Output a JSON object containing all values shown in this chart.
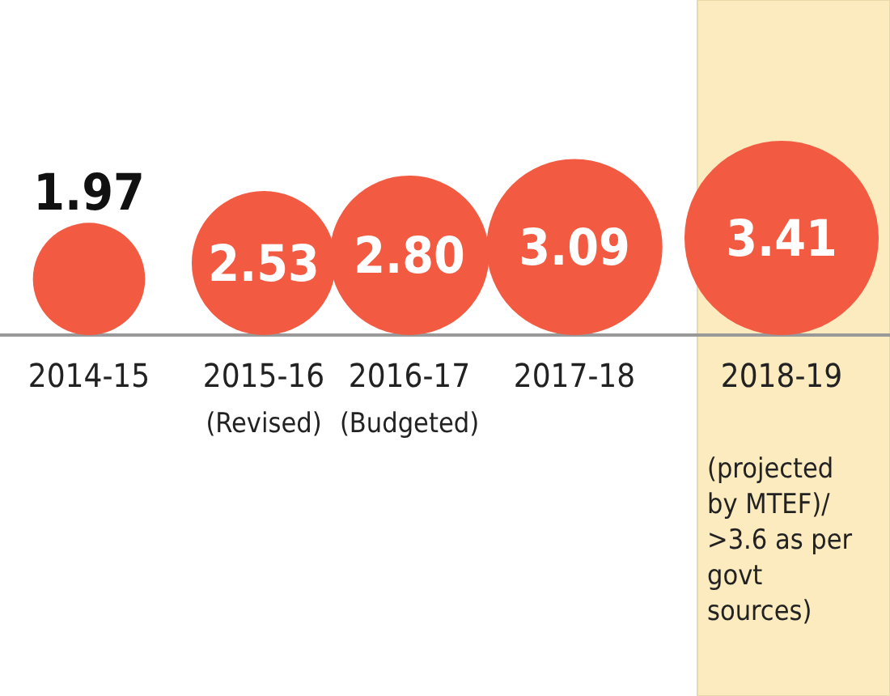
{
  "chart_data": {
    "type": "other",
    "categories": [
      "2014-15",
      "2015-16",
      "2016-17",
      "2017-18",
      "2018-19"
    ],
    "values": [
      1.97,
      2.53,
      2.8,
      3.09,
      3.41
    ],
    "color": "#f25a42",
    "value_labels": [
      "1.97",
      "2.53",
      "2.80",
      "3.09",
      "3.41"
    ],
    "annotations": [
      {
        "text": "(Revised)",
        "x": "2015-16"
      },
      {
        "text": "(Budgeted)",
        "x": "2016-17"
      }
    ],
    "bands": [
      {
        "axis": "x",
        "from": "2018-19",
        "to": "2018-19",
        "label": "(projected by MTEF)/ >3.6 as per govt sources)",
        "color": "#fcebbf"
      }
    ]
  }
}
